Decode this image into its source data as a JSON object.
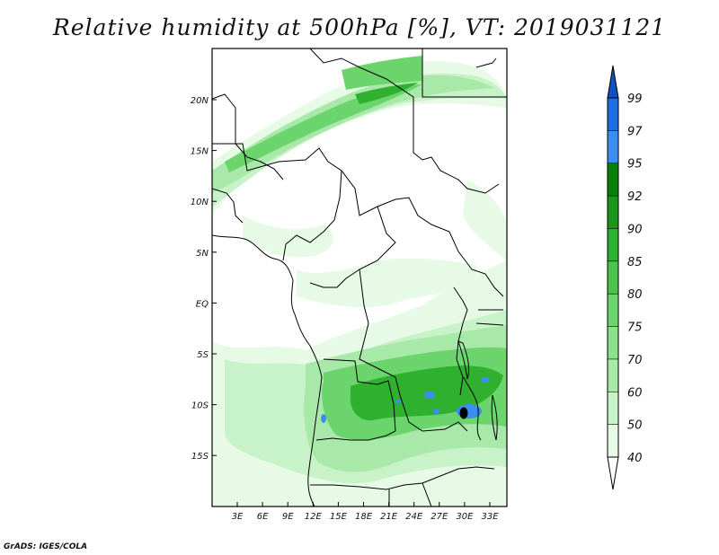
{
  "title": "Relative humidity at 500hPa [%], VT: 2019031121",
  "credit": "GrADS: IGES/COLA",
  "map": {
    "variable": "Relative humidity",
    "level": "500hPa",
    "units": "%",
    "valid_time": "2019031121",
    "lon_ticks": [
      "3E",
      "6E",
      "9E",
      "12E",
      "15E",
      "18E",
      "21E",
      "24E",
      "27E",
      "30E",
      "33E"
    ],
    "lat_ticks": [
      "20N",
      "15N",
      "10N",
      "5N",
      "EQ",
      "5S",
      "10S",
      "15S"
    ]
  },
  "colorbar": {
    "levels": [
      "40",
      "50",
      "60",
      "70",
      "75",
      "80",
      "85",
      "90",
      "92",
      "95",
      "97",
      "99"
    ],
    "colors": [
      "#ffffff",
      "#e6fae6",
      "#c8f2c8",
      "#a8e8a8",
      "#8ce08c",
      "#6cd46c",
      "#4cc44c",
      "#2fb02f",
      "#1a961a",
      "#0a820a",
      "#3c8ef0",
      "#1e6ee0",
      "#1050c0"
    ]
  }
}
